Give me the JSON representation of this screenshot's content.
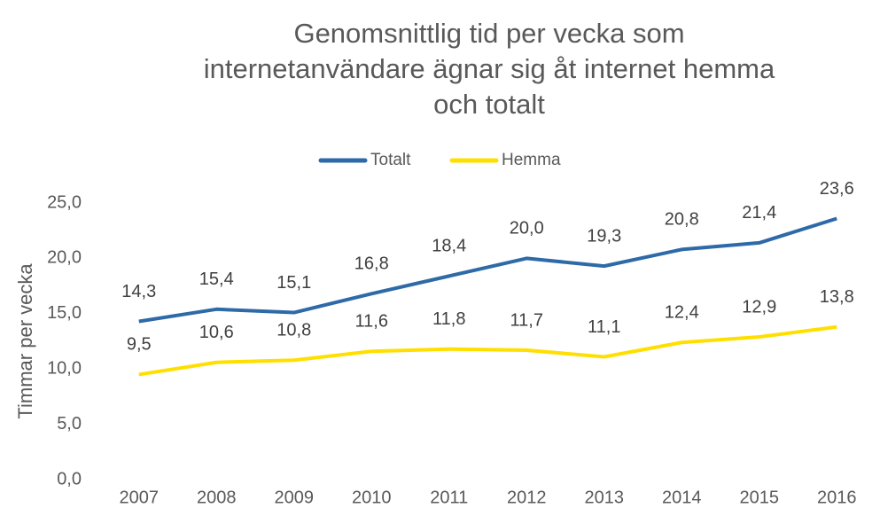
{
  "chart_data": {
    "type": "line",
    "title": [
      "Genomsnittlig tid per vecka som",
      "internetanvändare ägnar sig åt internet hemma",
      "och totalt"
    ],
    "ylabel": "Timmar per vecka",
    "categories": [
      "2007",
      "2008",
      "2009",
      "2010",
      "2011",
      "2012",
      "2013",
      "2014",
      "2015",
      "2016"
    ],
    "series": [
      {
        "name": "Totalt",
        "color": "#2e6aa8",
        "values": [
          14.3,
          15.4,
          15.1,
          16.8,
          18.4,
          20.0,
          19.3,
          20.8,
          21.4,
          23.6
        ],
        "value_labels": [
          "14,3",
          "15,4",
          "15,1",
          "16,8",
          "18,4",
          "20,0",
          "19,3",
          "20,8",
          "21,4",
          "23,6"
        ]
      },
      {
        "name": "Hemma",
        "color": "#ffdf00",
        "values": [
          9.5,
          10.6,
          10.8,
          11.6,
          11.8,
          11.7,
          11.1,
          12.4,
          12.9,
          13.8
        ],
        "value_labels": [
          "9,5",
          "10,6",
          "10,8",
          "11,6",
          "11,8",
          "11,7",
          "11,1",
          "12,4",
          "12,9",
          "13,8"
        ]
      }
    ],
    "ylim": [
      0,
      25
    ],
    "yticks": [
      {
        "value": 0,
        "label": "0,0"
      },
      {
        "value": 5,
        "label": "5,0"
      },
      {
        "value": 10,
        "label": "10,0"
      },
      {
        "value": 15,
        "label": "15,0"
      },
      {
        "value": 20,
        "label": "20,0"
      },
      {
        "value": 25,
        "label": "25,0"
      }
    ],
    "legend": "top",
    "grid": false
  }
}
